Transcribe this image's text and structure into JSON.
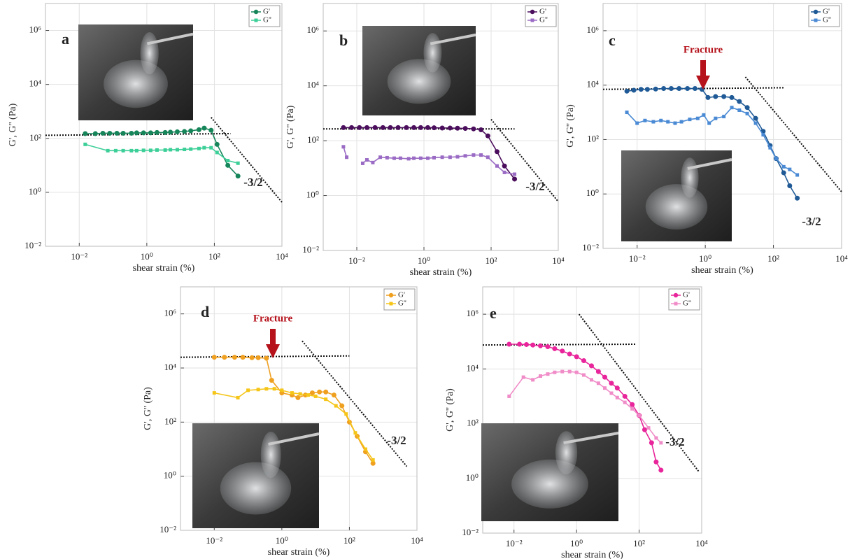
{
  "chart_data": [
    {
      "type": "line",
      "panel_label": "a",
      "slope_label": "-3/2",
      "xlabel": "shear strain (%)",
      "ylabel": "G', G'' (Pa)",
      "xscale": "log",
      "yscale": "log",
      "grid": true,
      "legend": "upper right",
      "xlim": [
        0.001,
        10000
      ],
      "ylim": [
        0.01,
        10000000
      ],
      "xticks": [
        {
          "value": 0.01,
          "label": "10⁻²"
        },
        {
          "value": 1,
          "label": "10⁰"
        },
        {
          "value": 100,
          "label": "10²"
        },
        {
          "value": 10000,
          "label": "10⁴"
        }
      ],
      "yticks": [
        {
          "value": 0.01,
          "label": "10⁻²"
        },
        {
          "value": 1,
          "label": "10⁰"
        },
        {
          "value": 100,
          "label": "10²"
        },
        {
          "value": 10000,
          "label": "10⁴"
        },
        {
          "value": 1000000,
          "label": "10⁶"
        }
      ],
      "series": [
        {
          "name": "G'",
          "color": "#17855a",
          "marker": "circle",
          "x": [
            0.015,
            0.03,
            0.05,
            0.08,
            0.13,
            0.2,
            0.35,
            0.5,
            0.8,
            1.3,
            2,
            3.5,
            5,
            8,
            13,
            20,
            35,
            50,
            80,
            120,
            250,
            500
          ],
          "values": [
            150,
            150,
            155,
            155,
            155,
            155,
            155,
            160,
            160,
            160,
            165,
            165,
            170,
            175,
            180,
            190,
            210,
            240,
            200,
            60,
            10,
            4
          ]
        },
        {
          "name": "G''",
          "color": "#3ccf98",
          "marker": "square",
          "x": [
            0.015,
            0.07,
            0.12,
            0.2,
            0.35,
            0.5,
            0.8,
            1.3,
            2,
            3.5,
            5,
            8,
            13,
            20,
            35,
            50,
            80,
            120,
            250,
            500
          ],
          "values": [
            60,
            35,
            35,
            35,
            35,
            35,
            36,
            36,
            37,
            37,
            38,
            38,
            39,
            40,
            42,
            45,
            45,
            30,
            15,
            12
          ]
        }
      ],
      "reference_lines": [
        {
          "x": [
            0.001,
            300
          ],
          "values": [
            130,
            150
          ]
        },
        {
          "x": [
            80,
            10000
          ],
          "values": [
            600,
            0.43
          ]
        }
      ]
    },
    {
      "type": "line",
      "panel_label": "b",
      "slope_label": "-3/2",
      "xlabel": "shear strain (%)",
      "ylabel": "G', G'' (Pa)",
      "xscale": "log",
      "yscale": "log",
      "grid": true,
      "legend": "upper right",
      "xlim": [
        0.001,
        10000
      ],
      "ylim": [
        0.01,
        10000000
      ],
      "xticks": [
        {
          "value": 0.01,
          "label": "10⁻²"
        },
        {
          "value": 1,
          "label": "10⁰"
        },
        {
          "value": 100,
          "label": "10²"
        },
        {
          "value": 10000,
          "label": "10⁴"
        }
      ],
      "yticks": [
        {
          "value": 0.01,
          "label": "10⁻²"
        },
        {
          "value": 1,
          "label": "10⁰"
        },
        {
          "value": 100,
          "label": "10²"
        },
        {
          "value": 10000,
          "label": "10⁴"
        },
        {
          "value": 1000000,
          "label": "10⁶"
        }
      ],
      "series": [
        {
          "name": "G'",
          "color": "#4b0e5c",
          "marker": "circle",
          "x": [
            0.004,
            0.007,
            0.012,
            0.02,
            0.035,
            0.06,
            0.1,
            0.17,
            0.3,
            0.5,
            0.8,
            1.3,
            2,
            3.5,
            6,
            10,
            17,
            30,
            50,
            80,
            150,
            250,
            500
          ],
          "values": [
            300,
            300,
            300,
            300,
            300,
            300,
            300,
            300,
            300,
            300,
            300,
            300,
            295,
            290,
            290,
            285,
            280,
            270,
            250,
            150,
            40,
            12,
            4
          ]
        },
        {
          "name": "G''",
          "color": "#9a6bc4",
          "marker": "square",
          "x": [
            0.004,
            0.005,
            0.009,
            0.015,
            0.02,
            0.03,
            0.05,
            0.08,
            0.13,
            0.2,
            0.35,
            0.5,
            0.8,
            1.3,
            2,
            3.5,
            6,
            10,
            17,
            30,
            50,
            80,
            150,
            250,
            500
          ],
          "values": [
            60,
            25,
            null,
            15,
            20,
            16,
            25,
            24,
            23,
            23,
            22,
            23,
            23,
            23,
            24,
            25,
            25,
            26,
            28,
            30,
            30,
            25,
            12,
            7,
            6
          ]
        }
      ],
      "reference_lines": [
        {
          "x": [
            0.001,
            500
          ],
          "values": [
            270,
            270
          ]
        },
        {
          "x": [
            100,
            10000
          ],
          "values": [
            600,
            0.6
          ]
        }
      ]
    },
    {
      "type": "line",
      "panel_label": "c",
      "slope_label": "-3/2",
      "annotation": "Fracture",
      "xlabel": "shear strain (%)",
      "ylabel": "G', G'' (Pa)",
      "xscale": "log",
      "yscale": "log",
      "grid": true,
      "legend": "upper right",
      "xlim": [
        0.001,
        10000
      ],
      "ylim": [
        0.01,
        10000000
      ],
      "xticks": [
        {
          "value": 0.01,
          "label": "10⁻²"
        },
        {
          "value": 1,
          "label": "10⁰"
        },
        {
          "value": 100,
          "label": "10²"
        },
        {
          "value": 10000,
          "label": "10⁴"
        }
      ],
      "yticks": [
        {
          "value": 0.01,
          "label": "10⁻²"
        },
        {
          "value": 1,
          "label": "10⁰"
        },
        {
          "value": 100,
          "label": "10²"
        },
        {
          "value": 10000,
          "label": "10⁴"
        },
        {
          "value": 1000000,
          "label": "10⁶"
        }
      ],
      "series": [
        {
          "name": "G'",
          "color": "#1f5a96",
          "marker": "circle",
          "x": [
            0.005,
            0.008,
            0.013,
            0.02,
            0.035,
            0.06,
            0.1,
            0.17,
            0.3,
            0.5,
            0.8,
            1.2,
            2,
            3.5,
            6,
            10,
            17,
            30,
            50,
            80,
            120,
            200,
            300,
            500
          ],
          "values": [
            6000,
            6500,
            7000,
            7000,
            7200,
            7500,
            7500,
            7500,
            7500,
            7500,
            7000,
            3500,
            3800,
            3800,
            3500,
            2500,
            1500,
            600,
            200,
            60,
            20,
            6,
            2,
            0.7
          ]
        },
        {
          "name": "G''",
          "color": "#4a8ad4",
          "marker": "square",
          "x": [
            0.005,
            0.01,
            0.017,
            0.03,
            0.05,
            0.08,
            0.13,
            0.2,
            0.35,
            0.6,
            0.9,
            1.3,
            2,
            3.5,
            6,
            10,
            17,
            30,
            50,
            80,
            120,
            200,
            300,
            500
          ],
          "values": [
            1000,
            400,
            500,
            450,
            500,
            450,
            400,
            450,
            550,
            600,
            800,
            400,
            600,
            700,
            1500,
            1200,
            900,
            400,
            150,
            50,
            20,
            10,
            8,
            5
          ]
        }
      ],
      "reference_lines": [
        {
          "x": [
            0.001,
            200
          ],
          "values": [
            7000,
            8000
          ]
        },
        {
          "x": [
            15,
            10000
          ],
          "values": [
            20000,
            1.2
          ]
        }
      ]
    },
    {
      "type": "line",
      "panel_label": "d",
      "slope_label": "-3/2",
      "annotation": "Fracture",
      "xlabel": "shear strain (%)",
      "ylabel": "G', G'' (Pa)",
      "xscale": "log",
      "yscale": "log",
      "grid": true,
      "legend": "upper right",
      "xlim": [
        0.001,
        10000
      ],
      "ylim": [
        0.01,
        10000000
      ],
      "xticks": [
        {
          "value": 0.01,
          "label": "10⁻²"
        },
        {
          "value": 1,
          "label": "10⁰"
        },
        {
          "value": 100,
          "label": "10²"
        },
        {
          "value": 10000,
          "label": "10⁴"
        }
      ],
      "yticks": [
        {
          "value": 0.01,
          "label": "10⁻²"
        },
        {
          "value": 1,
          "label": "10⁰"
        },
        {
          "value": 100,
          "label": "10²"
        },
        {
          "value": 10000,
          "label": "10⁴"
        },
        {
          "value": 1000000,
          "label": "10⁶"
        }
      ],
      "series": [
        {
          "name": "G'",
          "color": "#f0a020",
          "marker": "circle",
          "x": [
            0.01,
            0.02,
            0.04,
            0.07,
            0.13,
            0.2,
            0.35,
            0.5,
            1,
            2,
            3,
            5,
            8,
            13,
            20,
            35,
            60,
            100,
            170,
            300,
            500
          ],
          "values": [
            25000,
            25000,
            25000,
            25000,
            24000,
            24000,
            23000,
            3500,
            1200,
            1000,
            800,
            1000,
            1200,
            1300,
            1300,
            1000,
            400,
            100,
            30,
            8,
            3
          ]
        },
        {
          "name": "G''",
          "color": "#f5c518",
          "marker": "square",
          "x": [
            0.01,
            0.05,
            0.1,
            0.2,
            0.35,
            0.6,
            1,
            2,
            3.5,
            6,
            10,
            20,
            40,
            80,
            150,
            300,
            500
          ],
          "values": [
            1200,
            800,
            1500,
            1600,
            1700,
            1700,
            1500,
            1200,
            1100,
            1000,
            900,
            700,
            400,
            200,
            40,
            10,
            4
          ]
        }
      ],
      "reference_lines": [
        {
          "x": [
            0.001,
            100
          ],
          "values": [
            25000,
            28000
          ]
        },
        {
          "x": [
            4,
            5000
          ],
          "values": [
            100000,
            2.3
          ]
        }
      ]
    },
    {
      "type": "line",
      "panel_label": "e",
      "slope_label": "-3/2",
      "xlabel": "shear strain (%)",
      "ylabel": "G', G'' (Pa)",
      "xscale": "log",
      "yscale": "log",
      "grid": true,
      "legend": "upper right",
      "xlim": [
        0.001,
        10000
      ],
      "ylim": [
        0.01,
        10000000
      ],
      "xticks": [
        {
          "value": 0.01,
          "label": "10⁻²"
        },
        {
          "value": 1,
          "label": "10⁰"
        },
        {
          "value": 100,
          "label": "10²"
        },
        {
          "value": 10000,
          "label": "10⁴"
        }
      ],
      "yticks": [
        {
          "value": 0.01,
          "label": "10⁻²"
        },
        {
          "value": 1,
          "label": "10⁰"
        },
        {
          "value": 100,
          "label": "10²"
        },
        {
          "value": 10000,
          "label": "10⁴"
        },
        {
          "value": 1000000,
          "label": "10⁶"
        }
      ],
      "series": [
        {
          "name": "G'",
          "color": "#e8259a",
          "marker": "circle",
          "x": [
            0.007,
            0.015,
            0.025,
            0.04,
            0.07,
            0.12,
            0.2,
            0.35,
            0.6,
            1,
            1.7,
            3,
            5,
            8,
            13,
            20,
            35,
            60,
            100,
            150,
            250,
            350,
            500
          ],
          "values": [
            80000,
            80000,
            78000,
            75000,
            70000,
            65000,
            55000,
            45000,
            35000,
            28000,
            20000,
            13000,
            8000,
            5000,
            3000,
            2000,
            1000,
            500,
            200,
            60,
            20,
            4,
            2
          ]
        },
        {
          "name": "G''",
          "color": "#f08cc8",
          "marker": "square",
          "x": [
            0.007,
            0.02,
            0.04,
            0.07,
            0.12,
            0.2,
            0.35,
            0.6,
            1,
            1.7,
            3,
            5,
            8,
            13,
            20,
            35,
            60,
            100,
            200,
            350,
            500
          ],
          "values": [
            1000,
            5000,
            4000,
            5500,
            6500,
            7500,
            8000,
            8000,
            7500,
            6000,
            4000,
            3000,
            2000,
            1300,
            900,
            600,
            350,
            200,
            70,
            30,
            20
          ]
        }
      ],
      "reference_lines": [
        {
          "x": [
            0.001,
            80
          ],
          "values": [
            75000,
            80000
          ]
        },
        {
          "x": [
            1.2,
            8000
          ],
          "values": [
            1000000,
            1.8
          ]
        }
      ]
    }
  ]
}
